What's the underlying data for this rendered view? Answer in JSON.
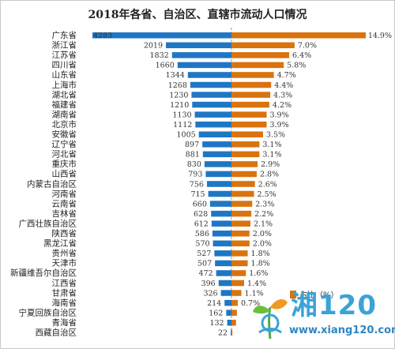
{
  "chart_data": {
    "type": "bar",
    "title": "2018年各省、自治区、直辖市流动人口情况",
    "categories": [
      "广东省",
      "浙江省",
      "江苏省",
      "四川省",
      "山东省",
      "上海市",
      "湖北省",
      "福建省",
      "湖南省",
      "北京市",
      "安徽省",
      "辽宁省",
      "河北省",
      "重庆市",
      "山西省",
      "内蒙古自治区",
      "河南省",
      "云南省",
      "吉林省",
      "广西壮族自治区",
      "陕西省",
      "黑龙江省",
      "贵州省",
      "天津市",
      "新疆维吾尔自治区",
      "江西省",
      "甘肃省",
      "海南省",
      "宁夏回族自治区",
      "青海省",
      "西藏自治区"
    ],
    "series": [
      {
        "name": "",
        "color": "#1f77c4",
        "values": [
          4283,
          2019,
          1832,
          1660,
          1344,
          1268,
          1230,
          1210,
          1130,
          1112,
          1005,
          897,
          881,
          830,
          793,
          756,
          715,
          660,
          628,
          612,
          586,
          570,
          527,
          507,
          472,
          396,
          326,
          214,
          162,
          132,
          22
        ]
      },
      {
        "name": "占比（%）",
        "color": "#d9730d",
        "values": [
          14.9,
          7.0,
          6.4,
          5.8,
          4.7,
          4.4,
          4.3,
          4.2,
          3.9,
          3.9,
          3.5,
          3.1,
          3.1,
          2.9,
          2.8,
          2.6,
          2.5,
          2.3,
          2.2,
          2.1,
          2.0,
          2.0,
          1.8,
          1.8,
          1.6,
          1.4,
          1.1,
          0.7,
          0.6,
          0.5,
          0.1
        ]
      }
    ],
    "value_labels": [
      "4283",
      "2019",
      "1832",
      "1660",
      "1344",
      "1268",
      "1230",
      "1210",
      "1130",
      "1112",
      "1005",
      "897",
      "881",
      "830",
      "793",
      "756",
      "715",
      "660",
      "628",
      "612",
      "586",
      "570",
      "527",
      "507",
      "472",
      "396",
      "326",
      "214",
      "162",
      "132",
      "22"
    ],
    "percent_labels": [
      "14.9%",
      "7.0%",
      "6.4%",
      "5.8%",
      "4.7%",
      "4.4%",
      "4.3%",
      "4.2%",
      "3.9%",
      "3.9%",
      "3.5%",
      "3.1%",
      "3.1%",
      "2.9%",
      "2.8%",
      "2.6%",
      "2.5%",
      "2.3%",
      "2.2%",
      "2.1%",
      "2.0%",
      "2.0%",
      "1.8%",
      "1.8%",
      "1.6%",
      "1.4%",
      "1.1%",
      "0.7%",
      "",
      "",
      ""
    ],
    "left_max": 4283,
    "right_max": 14.9,
    "legend": {
      "label": "占比（%）",
      "position": "bottom-right"
    }
  },
  "watermark": {
    "text": "湘120",
    "url": "www.xiang120.com",
    "icon": "sprout-logo-icon"
  }
}
